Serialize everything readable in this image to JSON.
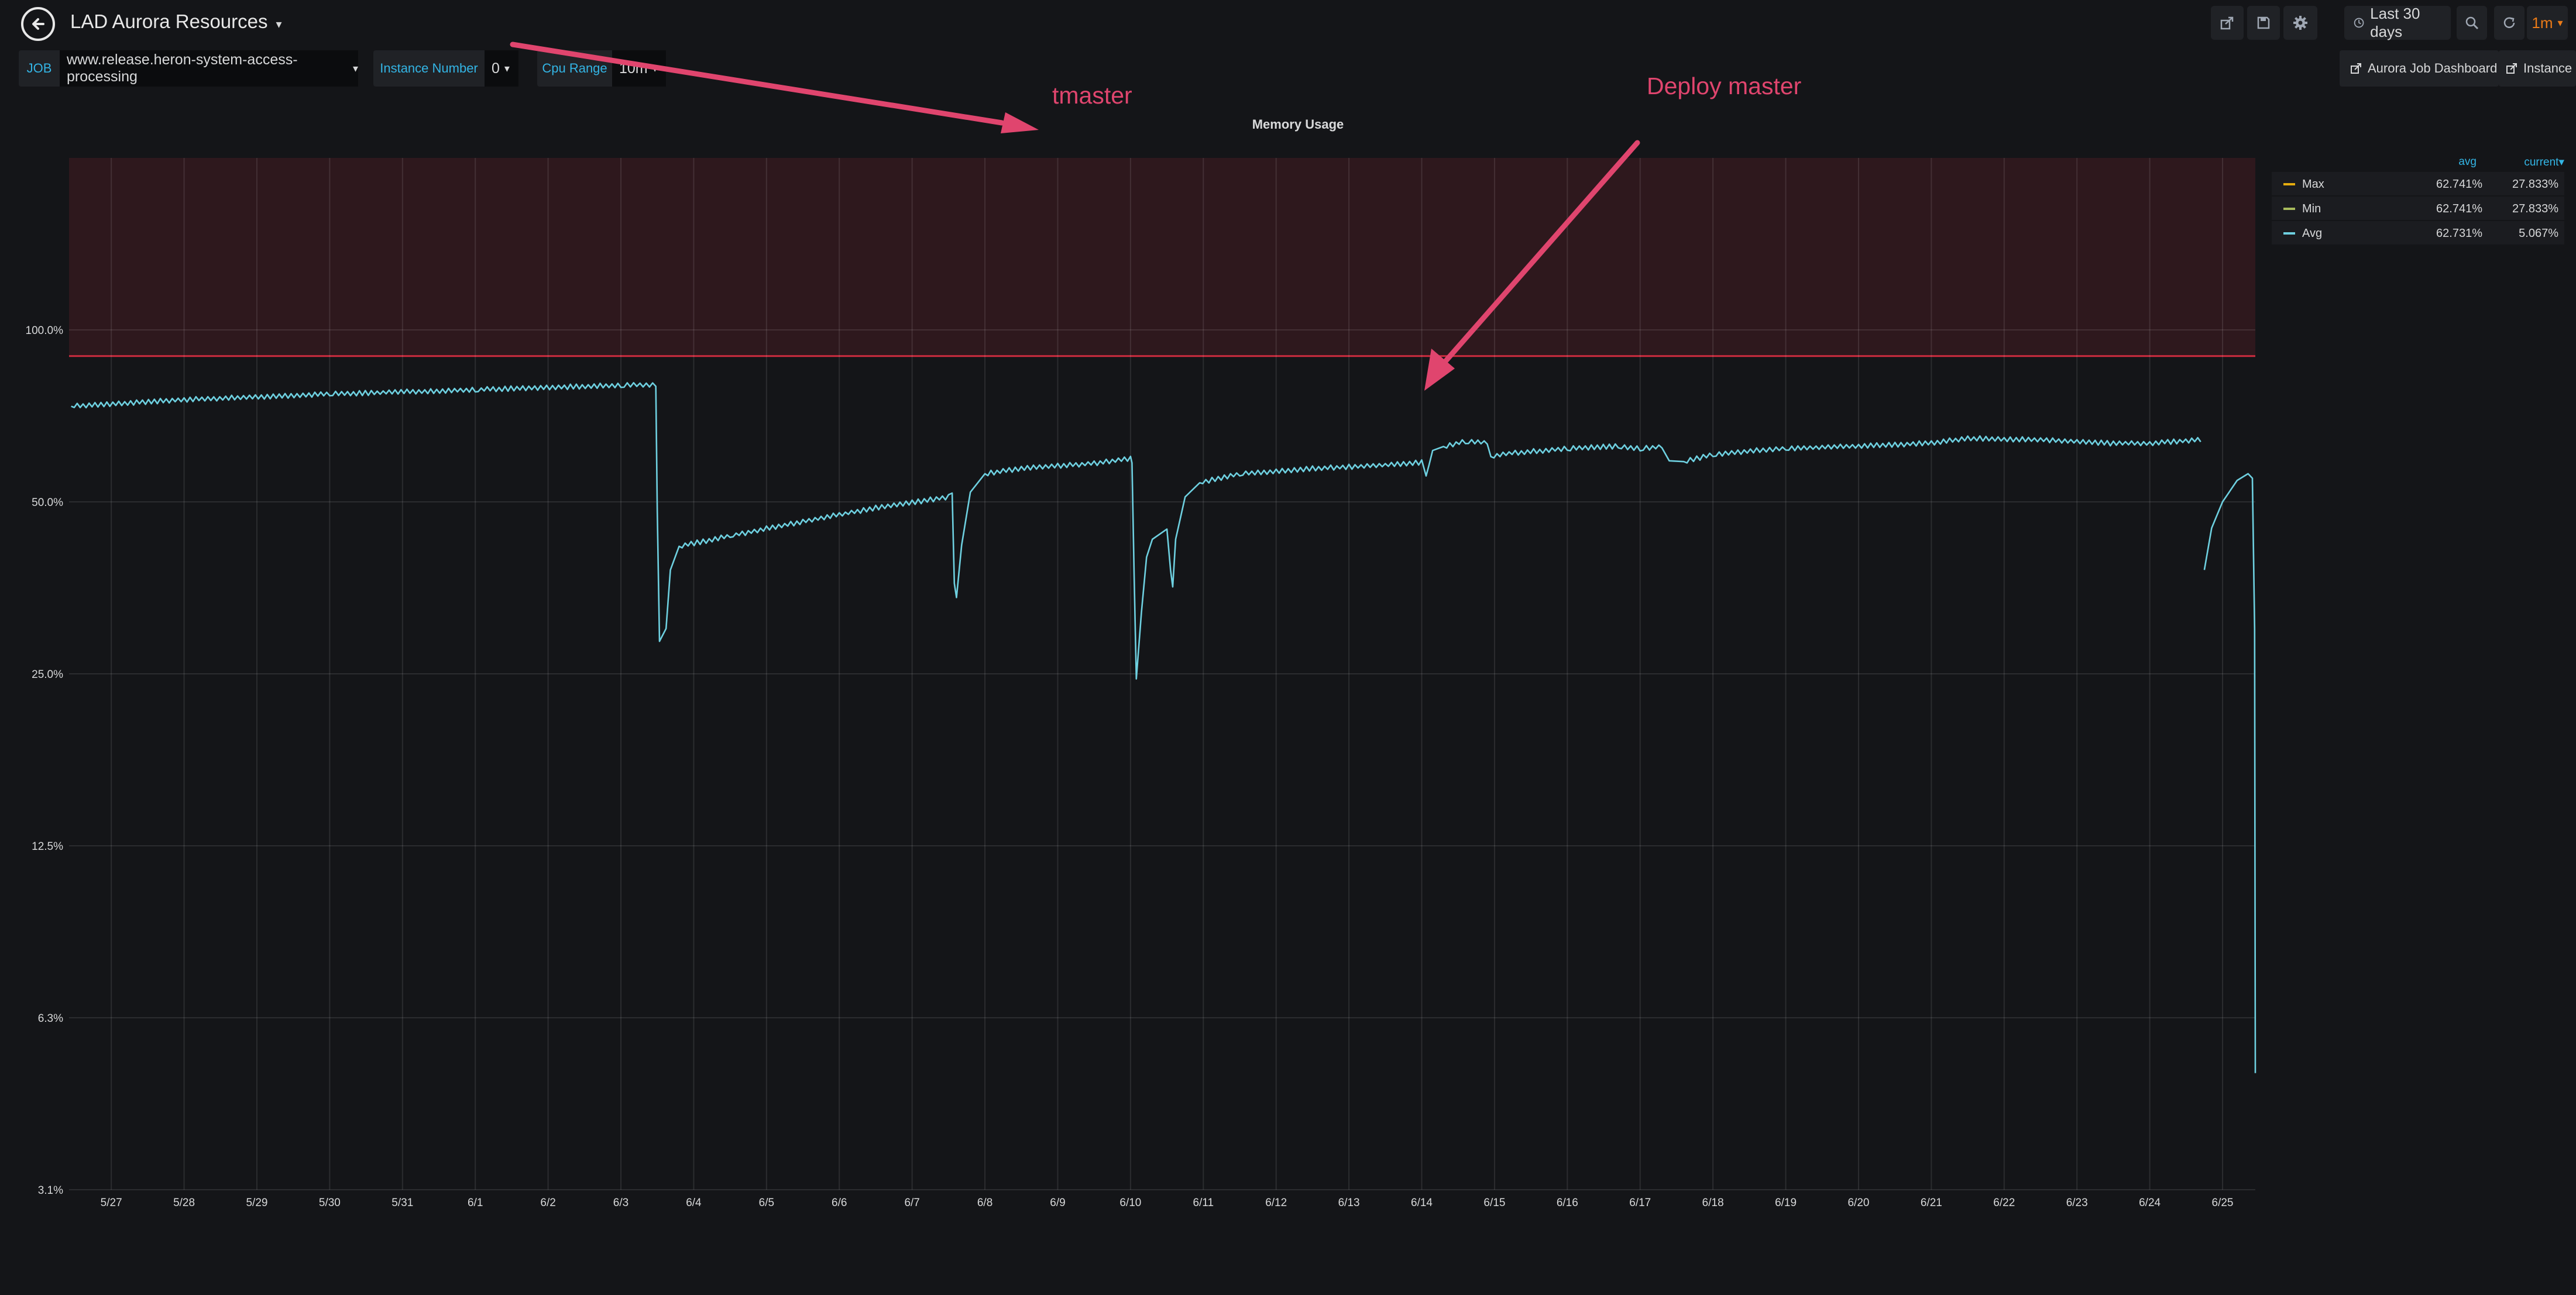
{
  "dashboard": {
    "title": "LAD Aurora Resources"
  },
  "toolbar": {
    "time_range": "Last 30 days",
    "refresh_interval": "1m",
    "icons": [
      "share-icon",
      "save-icon",
      "gear-icon",
      "clock-icon",
      "zoom-out-icon",
      "refresh-icon"
    ]
  },
  "variables": [
    {
      "label": "JOB",
      "value": "www.release.heron-system-access-processing"
    },
    {
      "label": "Instance Number",
      "value": "0"
    },
    {
      "label": "Cpu Range",
      "value": "10m"
    }
  ],
  "links": [
    {
      "label": "Aurora Job Dashboard"
    },
    {
      "label": "Instance"
    }
  ],
  "annotations": [
    {
      "text": "tmaster"
    },
    {
      "text": "Deploy master"
    }
  ],
  "legend": {
    "headers": {
      "avg": "avg",
      "current": "current▾"
    },
    "items": [
      {
        "name": "Max",
        "avg": "62.741%",
        "current": "27.833%",
        "color": "#e5ac0e"
      },
      {
        "name": "Min",
        "avg": "62.741%",
        "current": "27.833%",
        "color": "#a8bb5c"
      },
      {
        "name": "Avg",
        "avg": "62.731%",
        "current": "5.067%",
        "color": "#6ed0e0"
      }
    ]
  },
  "chart_data": {
    "type": "line",
    "title": "Memory Usage",
    "y_scale": "log2",
    "y_ticks": [
      "3.1%",
      "6.3%",
      "12.5%",
      "25.0%",
      "50.0%",
      "100.0%"
    ],
    "y_tick_values": [
      3.125,
      6.25,
      12.5,
      25,
      50,
      100
    ],
    "ylim": [
      3.125,
      200
    ],
    "threshold": {
      "value": 90,
      "fill": "above",
      "color": "#e02f44"
    },
    "x_ticks": [
      "5/27",
      "5/28",
      "5/29",
      "5/30",
      "5/31",
      "6/1",
      "6/2",
      "6/3",
      "6/4",
      "6/5",
      "6/6",
      "6/7",
      "6/8",
      "6/9",
      "6/10",
      "6/11",
      "6/12",
      "6/13",
      "6/14",
      "6/15",
      "6/16",
      "6/17",
      "6/18",
      "6/19",
      "6/20",
      "6/21",
      "6/22",
      "6/23",
      "6/24",
      "6/25"
    ],
    "xlim": [
      -0.58,
      29.45
    ],
    "series": [
      {
        "name": "Avg",
        "color": "#6ed0e0",
        "points": [
          [
            -0.55,
            73.5
          ],
          [
            1.0,
            75.5
          ],
          [
            3.0,
            77.2
          ],
          [
            5.0,
            78.6
          ],
          [
            7.0,
            80.0
          ],
          [
            7.48,
            80.2
          ],
          [
            7.5,
            48.0
          ],
          [
            7.53,
            28.5
          ],
          [
            7.62,
            30.0
          ],
          [
            7.68,
            38.0
          ],
          [
            7.8,
            41.8
          ],
          [
            8.5,
            43.6
          ],
          [
            9.5,
            46.2
          ],
          [
            10.5,
            48.8
          ],
          [
            11.5,
            51.0
          ],
          [
            11.55,
            51.8
          ],
          [
            11.58,
            36.0
          ],
          [
            11.61,
            34.0
          ],
          [
            11.68,
            42.0
          ],
          [
            11.8,
            52.0
          ],
          [
            12.0,
            56.0
          ],
          [
            12.5,
            57.2
          ],
          [
            13.5,
            58.4
          ],
          [
            14.0,
            59.5
          ],
          [
            14.02,
            58.5
          ],
          [
            14.05,
            37.0
          ],
          [
            14.08,
            24.5
          ],
          [
            14.15,
            32.0
          ],
          [
            14.22,
            40.0
          ],
          [
            14.3,
            43.0
          ],
          [
            14.5,
            44.8
          ],
          [
            14.55,
            38.0
          ],
          [
            14.58,
            35.5
          ],
          [
            14.62,
            43.0
          ],
          [
            14.75,
            51.0
          ],
          [
            14.95,
            54.0
          ],
          [
            15.5,
            56.0
          ],
          [
            16.5,
            57.2
          ],
          [
            17.5,
            58.0
          ],
          [
            18.0,
            58.6
          ],
          [
            18.06,
            55.5
          ],
          [
            18.1,
            58.0
          ],
          [
            18.15,
            61.5
          ],
          [
            18.3,
            62.5
          ],
          [
            18.6,
            63.8
          ],
          [
            18.9,
            63.5
          ],
          [
            18.95,
            60.0
          ],
          [
            19.2,
            60.8
          ],
          [
            20.0,
            62.0
          ],
          [
            20.7,
            62.6
          ],
          [
            21.0,
            62.0
          ],
          [
            21.3,
            62.5
          ],
          [
            21.4,
            59.0
          ],
          [
            21.6,
            58.8
          ],
          [
            22.0,
            60.5
          ],
          [
            22.6,
            61.5
          ],
          [
            23.0,
            62.0
          ],
          [
            24.0,
            62.6
          ],
          [
            25.0,
            63.4
          ],
          [
            25.5,
            64.6
          ],
          [
            26.5,
            64.2
          ],
          [
            27.5,
            63.3
          ],
          [
            28.0,
            63.3
          ],
          [
            28.7,
            64.3
          ],
          [
            null,
            null
          ],
          [
            28.75,
            38.0
          ],
          [
            28.85,
            45.0
          ],
          [
            29.0,
            50.0
          ],
          [
            29.2,
            54.5
          ],
          [
            29.35,
            56.0
          ],
          [
            29.41,
            55.0
          ],
          [
            29.44,
            30.0
          ],
          [
            29.45,
            5.0
          ]
        ]
      }
    ]
  }
}
